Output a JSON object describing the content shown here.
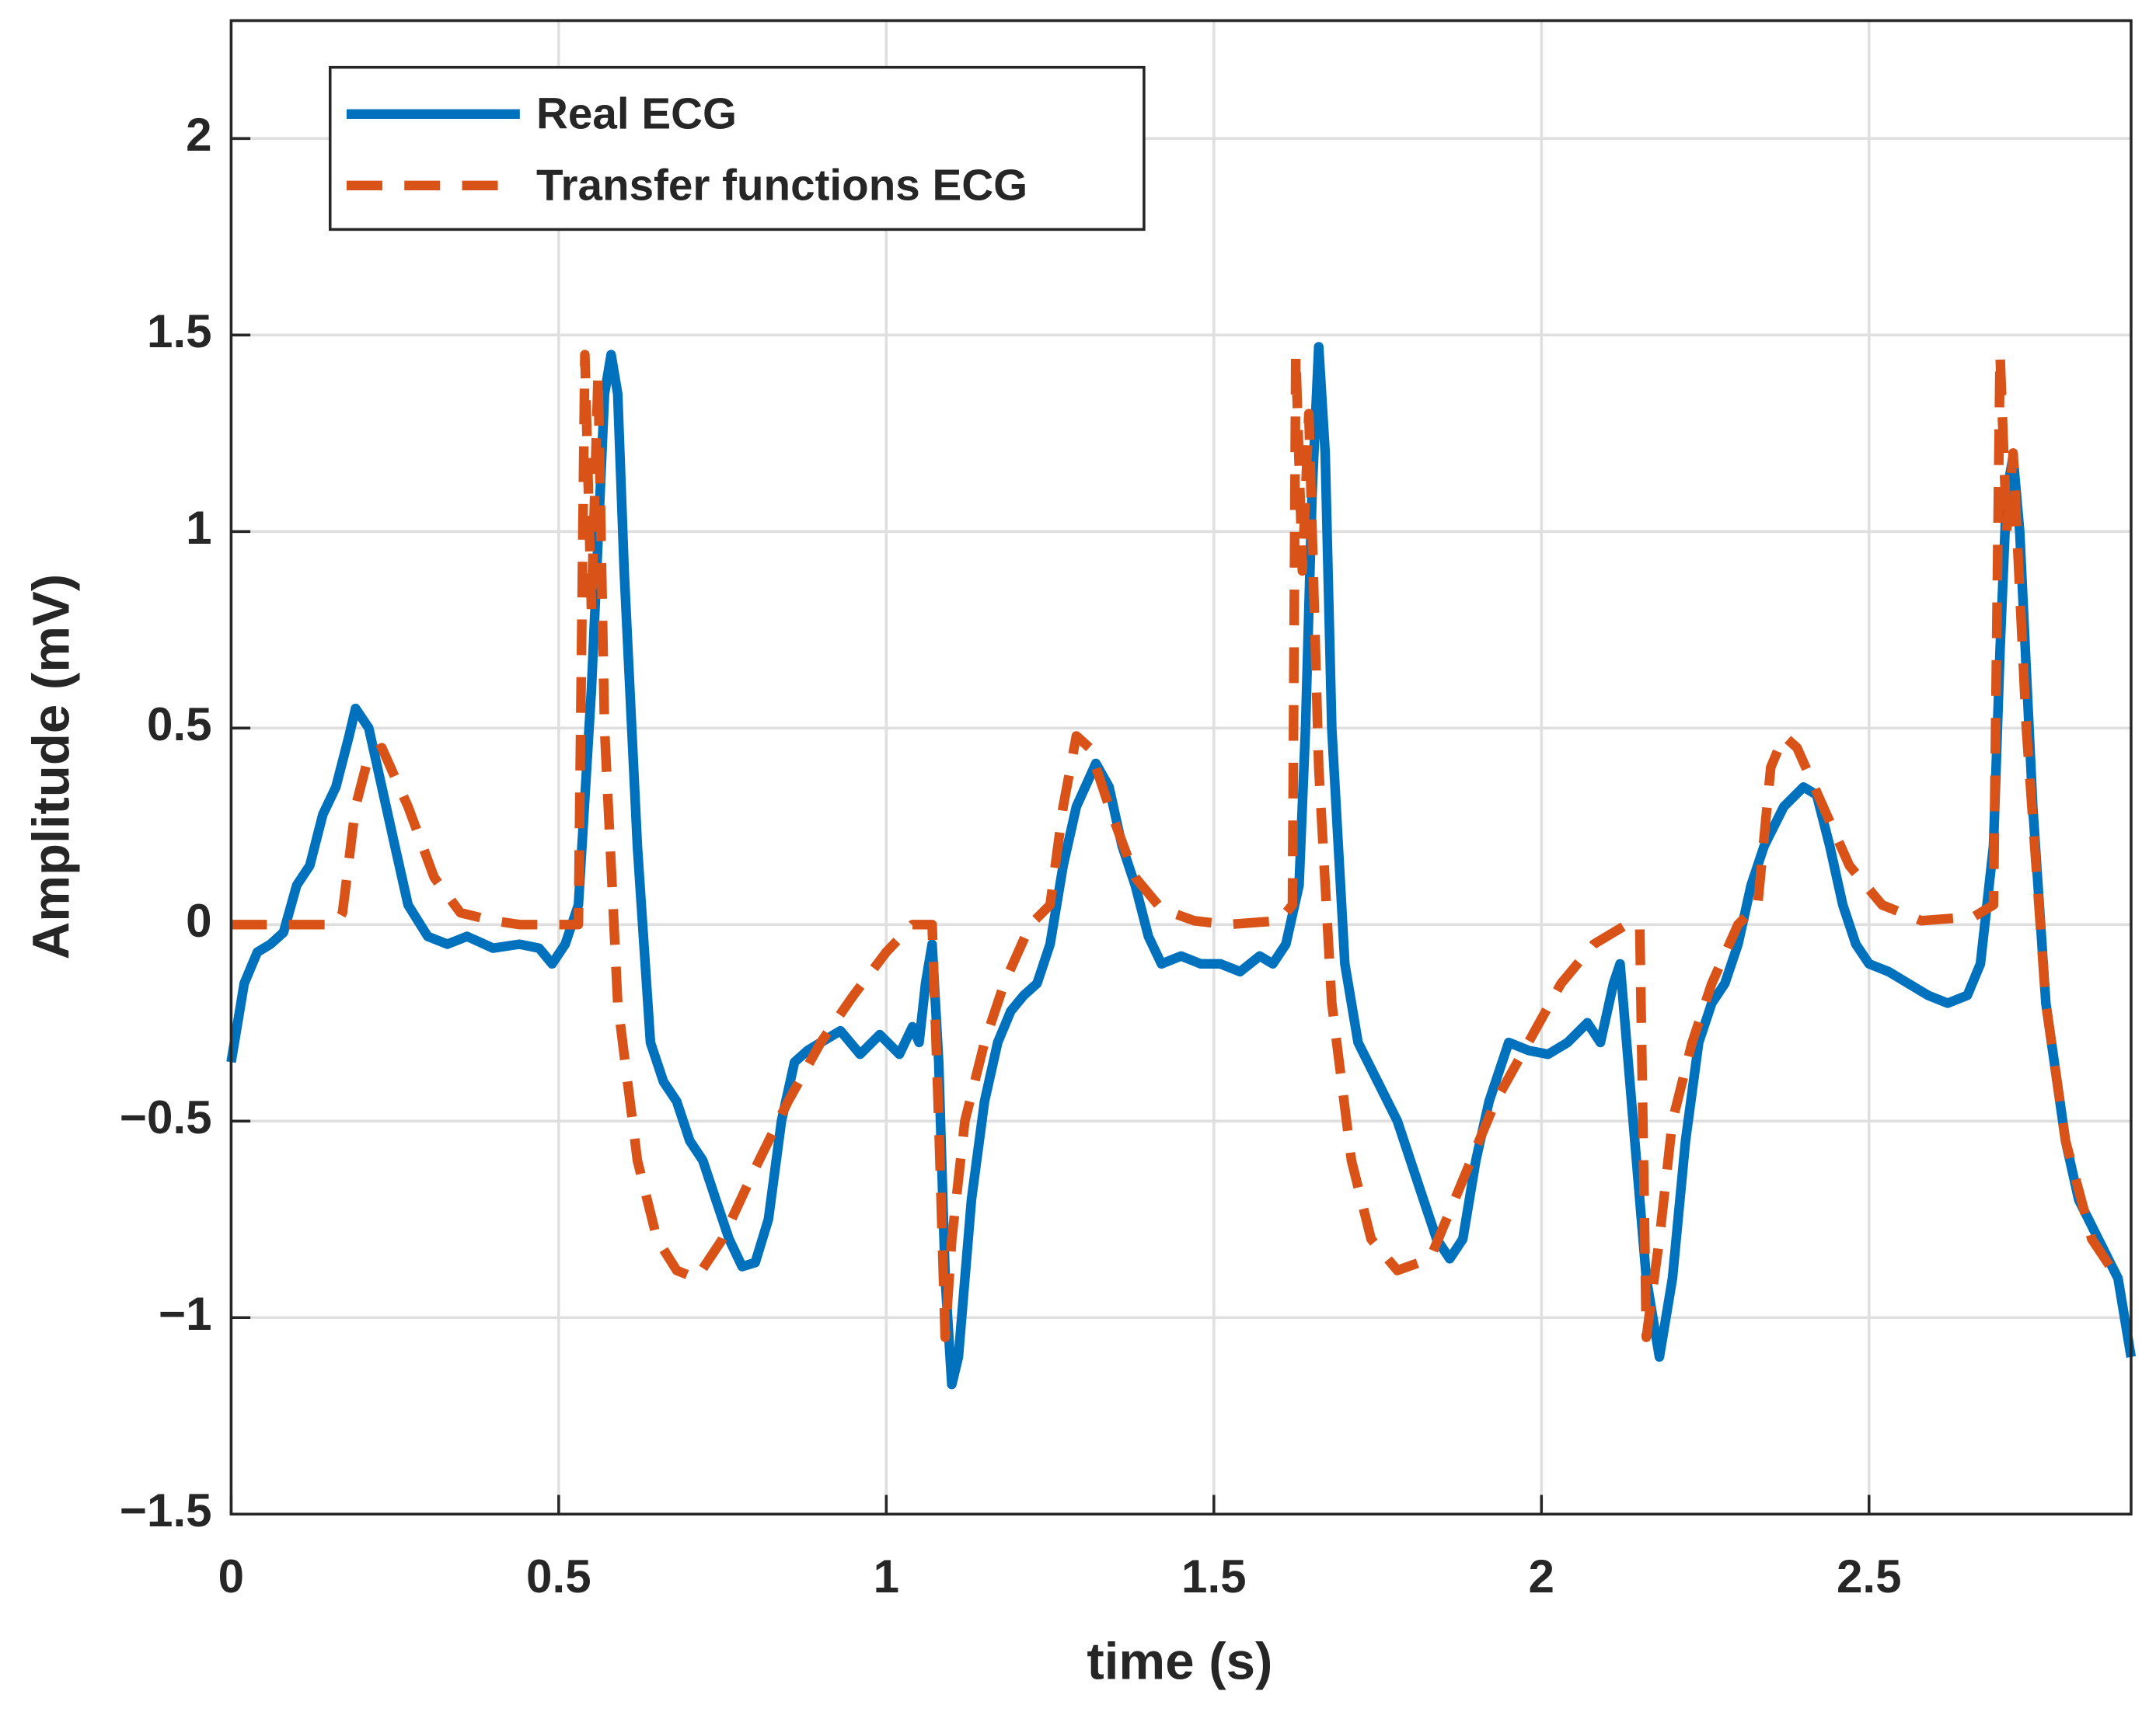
{
  "chart_data": {
    "type": "line",
    "xlabel": "time (s)",
    "ylabel": "Amplitude (mV)",
    "xlim": [
      0,
      2.9
    ],
    "xticks": [
      0,
      0.5,
      1,
      1.5,
      2,
      2.5
    ],
    "ylim": [
      -1.5,
      2.3
    ],
    "yticks": [
      {
        "value": -1.5,
        "label": "−1.5"
      },
      {
        "value": -1,
        "label": "−1"
      },
      {
        "value": -0.5,
        "label": "−0.5"
      },
      0,
      0.5,
      1,
      1.5,
      2
    ],
    "grid": true,
    "legend": "upper left",
    "series": [
      {
        "name": "Real ECG",
        "color": "#0072bd",
        "style": "solid",
        "x": [
          0,
          0.02,
          0.04,
          0.06,
          0.08,
          0.1,
          0.12,
          0.14,
          0.16,
          0.18,
          0.19,
          0.21,
          0.23,
          0.25,
          0.27,
          0.3,
          0.33,
          0.36,
          0.4,
          0.44,
          0.47,
          0.49,
          0.51,
          0.53,
          0.55,
          0.57,
          0.58,
          0.59,
          0.6,
          0.62,
          0.64,
          0.66,
          0.68,
          0.7,
          0.72,
          0.74,
          0.76,
          0.78,
          0.8,
          0.82,
          0.84,
          0.86,
          0.88,
          0.9,
          0.93,
          0.96,
          0.99,
          1.02,
          1.04,
          1.05,
          1.06,
          1.07,
          1.08,
          1.09,
          1.1,
          1.11,
          1.13,
          1.15,
          1.17,
          1.19,
          1.21,
          1.23,
          1.25,
          1.27,
          1.29,
          1.32,
          1.34,
          1.36,
          1.38,
          1.4,
          1.42,
          1.45,
          1.48,
          1.51,
          1.54,
          1.57,
          1.59,
          1.61,
          1.63,
          1.64,
          1.65,
          1.66,
          1.67,
          1.68,
          1.7,
          1.72,
          1.75,
          1.78,
          1.8,
          1.82,
          1.84,
          1.86,
          1.88,
          1.9,
          1.92,
          1.95,
          1.98,
          2.01,
          2.04,
          2.07,
          2.09,
          2.11,
          2.12,
          2.14,
          2.16,
          2.18,
          2.2,
          2.22,
          2.24,
          2.26,
          2.28,
          2.3,
          2.32,
          2.34,
          2.37,
          2.4,
          2.42,
          2.44,
          2.46,
          2.48,
          2.5,
          2.53,
          2.56,
          2.59,
          2.62,
          2.65,
          2.67,
          2.69,
          2.7,
          2.71,
          2.72,
          2.73,
          2.75,
          2.77,
          2.8,
          2.82,
          2.85,
          2.88,
          2.9
        ],
        "values": [
          -0.35,
          -0.15,
          -0.07,
          -0.05,
          -0.02,
          0.1,
          0.15,
          0.28,
          0.35,
          0.48,
          0.55,
          0.5,
          0.35,
          0.2,
          0.05,
          -0.03,
          -0.05,
          -0.03,
          -0.06,
          -0.05,
          -0.06,
          -0.1,
          -0.05,
          0.05,
          0.6,
          1.35,
          1.45,
          1.35,
          0.9,
          0.2,
          -0.3,
          -0.4,
          -0.45,
          -0.55,
          -0.6,
          -0.7,
          -0.8,
          -0.87,
          -0.86,
          -0.75,
          -0.5,
          -0.35,
          -0.32,
          -0.3,
          -0.27,
          -0.33,
          -0.28,
          -0.33,
          -0.26,
          -0.3,
          -0.15,
          -0.05,
          -0.35,
          -0.9,
          -1.17,
          -1.1,
          -0.7,
          -0.45,
          -0.3,
          -0.22,
          -0.18,
          -0.15,
          -0.05,
          0.15,
          0.3,
          0.41,
          0.35,
          0.2,
          0.1,
          -0.03,
          -0.1,
          -0.08,
          -0.1,
          -0.1,
          -0.12,
          -0.08,
          -0.1,
          -0.05,
          0.1,
          0.5,
          1.1,
          1.47,
          1.2,
          0.5,
          -0.1,
          -0.3,
          -0.4,
          -0.5,
          -0.6,
          -0.7,
          -0.8,
          -0.85,
          -0.8,
          -0.6,
          -0.45,
          -0.3,
          -0.32,
          -0.33,
          -0.3,
          -0.25,
          -0.3,
          -0.15,
          -0.1,
          -0.5,
          -0.9,
          -1.1,
          -0.9,
          -0.55,
          -0.3,
          -0.2,
          -0.15,
          -0.05,
          0.1,
          0.2,
          0.3,
          0.35,
          0.33,
          0.2,
          0.05,
          -0.05,
          -0.1,
          -0.12,
          -0.15,
          -0.18,
          -0.2,
          -0.18,
          -0.1,
          0.2,
          0.7,
          1.1,
          1.19,
          1.0,
          0.3,
          -0.2,
          -0.55,
          -0.7,
          -0.8,
          -0.9,
          -1.1
        ]
      },
      {
        "name": "Transfer functions ECG",
        "color": "#d95319",
        "style": "dashed",
        "x": [
          0,
          0.16,
          0.17,
          0.19,
          0.21,
          0.23,
          0.27,
          0.31,
          0.35,
          0.4,
          0.44,
          0.53,
          0.54,
          0.55,
          0.56,
          0.57,
          0.59,
          0.62,
          0.65,
          0.68,
          0.71,
          0.75,
          0.8,
          0.85,
          0.9,
          0.95,
          1.0,
          1.04,
          1.07,
          1.08,
          1.09,
          1.1,
          1.12,
          1.15,
          1.18,
          1.22,
          1.25,
          1.27,
          1.29,
          1.31,
          1.34,
          1.38,
          1.42,
          1.47,
          1.52,
          1.6,
          1.62,
          1.625,
          1.635,
          1.645,
          1.66,
          1.68,
          1.71,
          1.74,
          1.78,
          1.83,
          1.88,
          1.93,
          1.98,
          2.03,
          2.08,
          2.13,
          2.15,
          2.16,
          2.18,
          2.2,
          2.23,
          2.26,
          2.3,
          2.33,
          2.35,
          2.37,
          2.39,
          2.43,
          2.47,
          2.52,
          2.58,
          2.66,
          2.69,
          2.7,
          2.71,
          2.72,
          2.74,
          2.77,
          2.8,
          2.84,
          2.88
        ],
        "values": [
          0,
          0,
          0.03,
          0.3,
          0.43,
          0.45,
          0.3,
          0.12,
          0.03,
          0.01,
          0,
          0,
          1.45,
          0.8,
          1.4,
          0.5,
          -0.2,
          -0.6,
          -0.8,
          -0.88,
          -0.9,
          -0.8,
          -0.62,
          -0.45,
          -0.3,
          -0.18,
          -0.07,
          0,
          0,
          -0.5,
          -1.05,
          -0.8,
          -0.5,
          -0.3,
          -0.15,
          0,
          0.05,
          0.3,
          0.48,
          0.45,
          0.3,
          0.12,
          0.04,
          0.01,
          0,
          0.01,
          0.05,
          1.45,
          0.9,
          1.3,
          0.4,
          -0.2,
          -0.6,
          -0.8,
          -0.88,
          -0.85,
          -0.65,
          -0.45,
          -0.3,
          -0.15,
          -0.05,
          0,
          0,
          -1.05,
          -0.8,
          -0.5,
          -0.3,
          -0.15,
          0,
          0.05,
          0.4,
          0.48,
          0.45,
          0.3,
          0.15,
          0.05,
          0.01,
          0.02,
          0.05,
          1.45,
          1.0,
          1.2,
          0.5,
          -0.2,
          -0.55,
          -0.8,
          -0.9
        ]
      }
    ]
  }
}
